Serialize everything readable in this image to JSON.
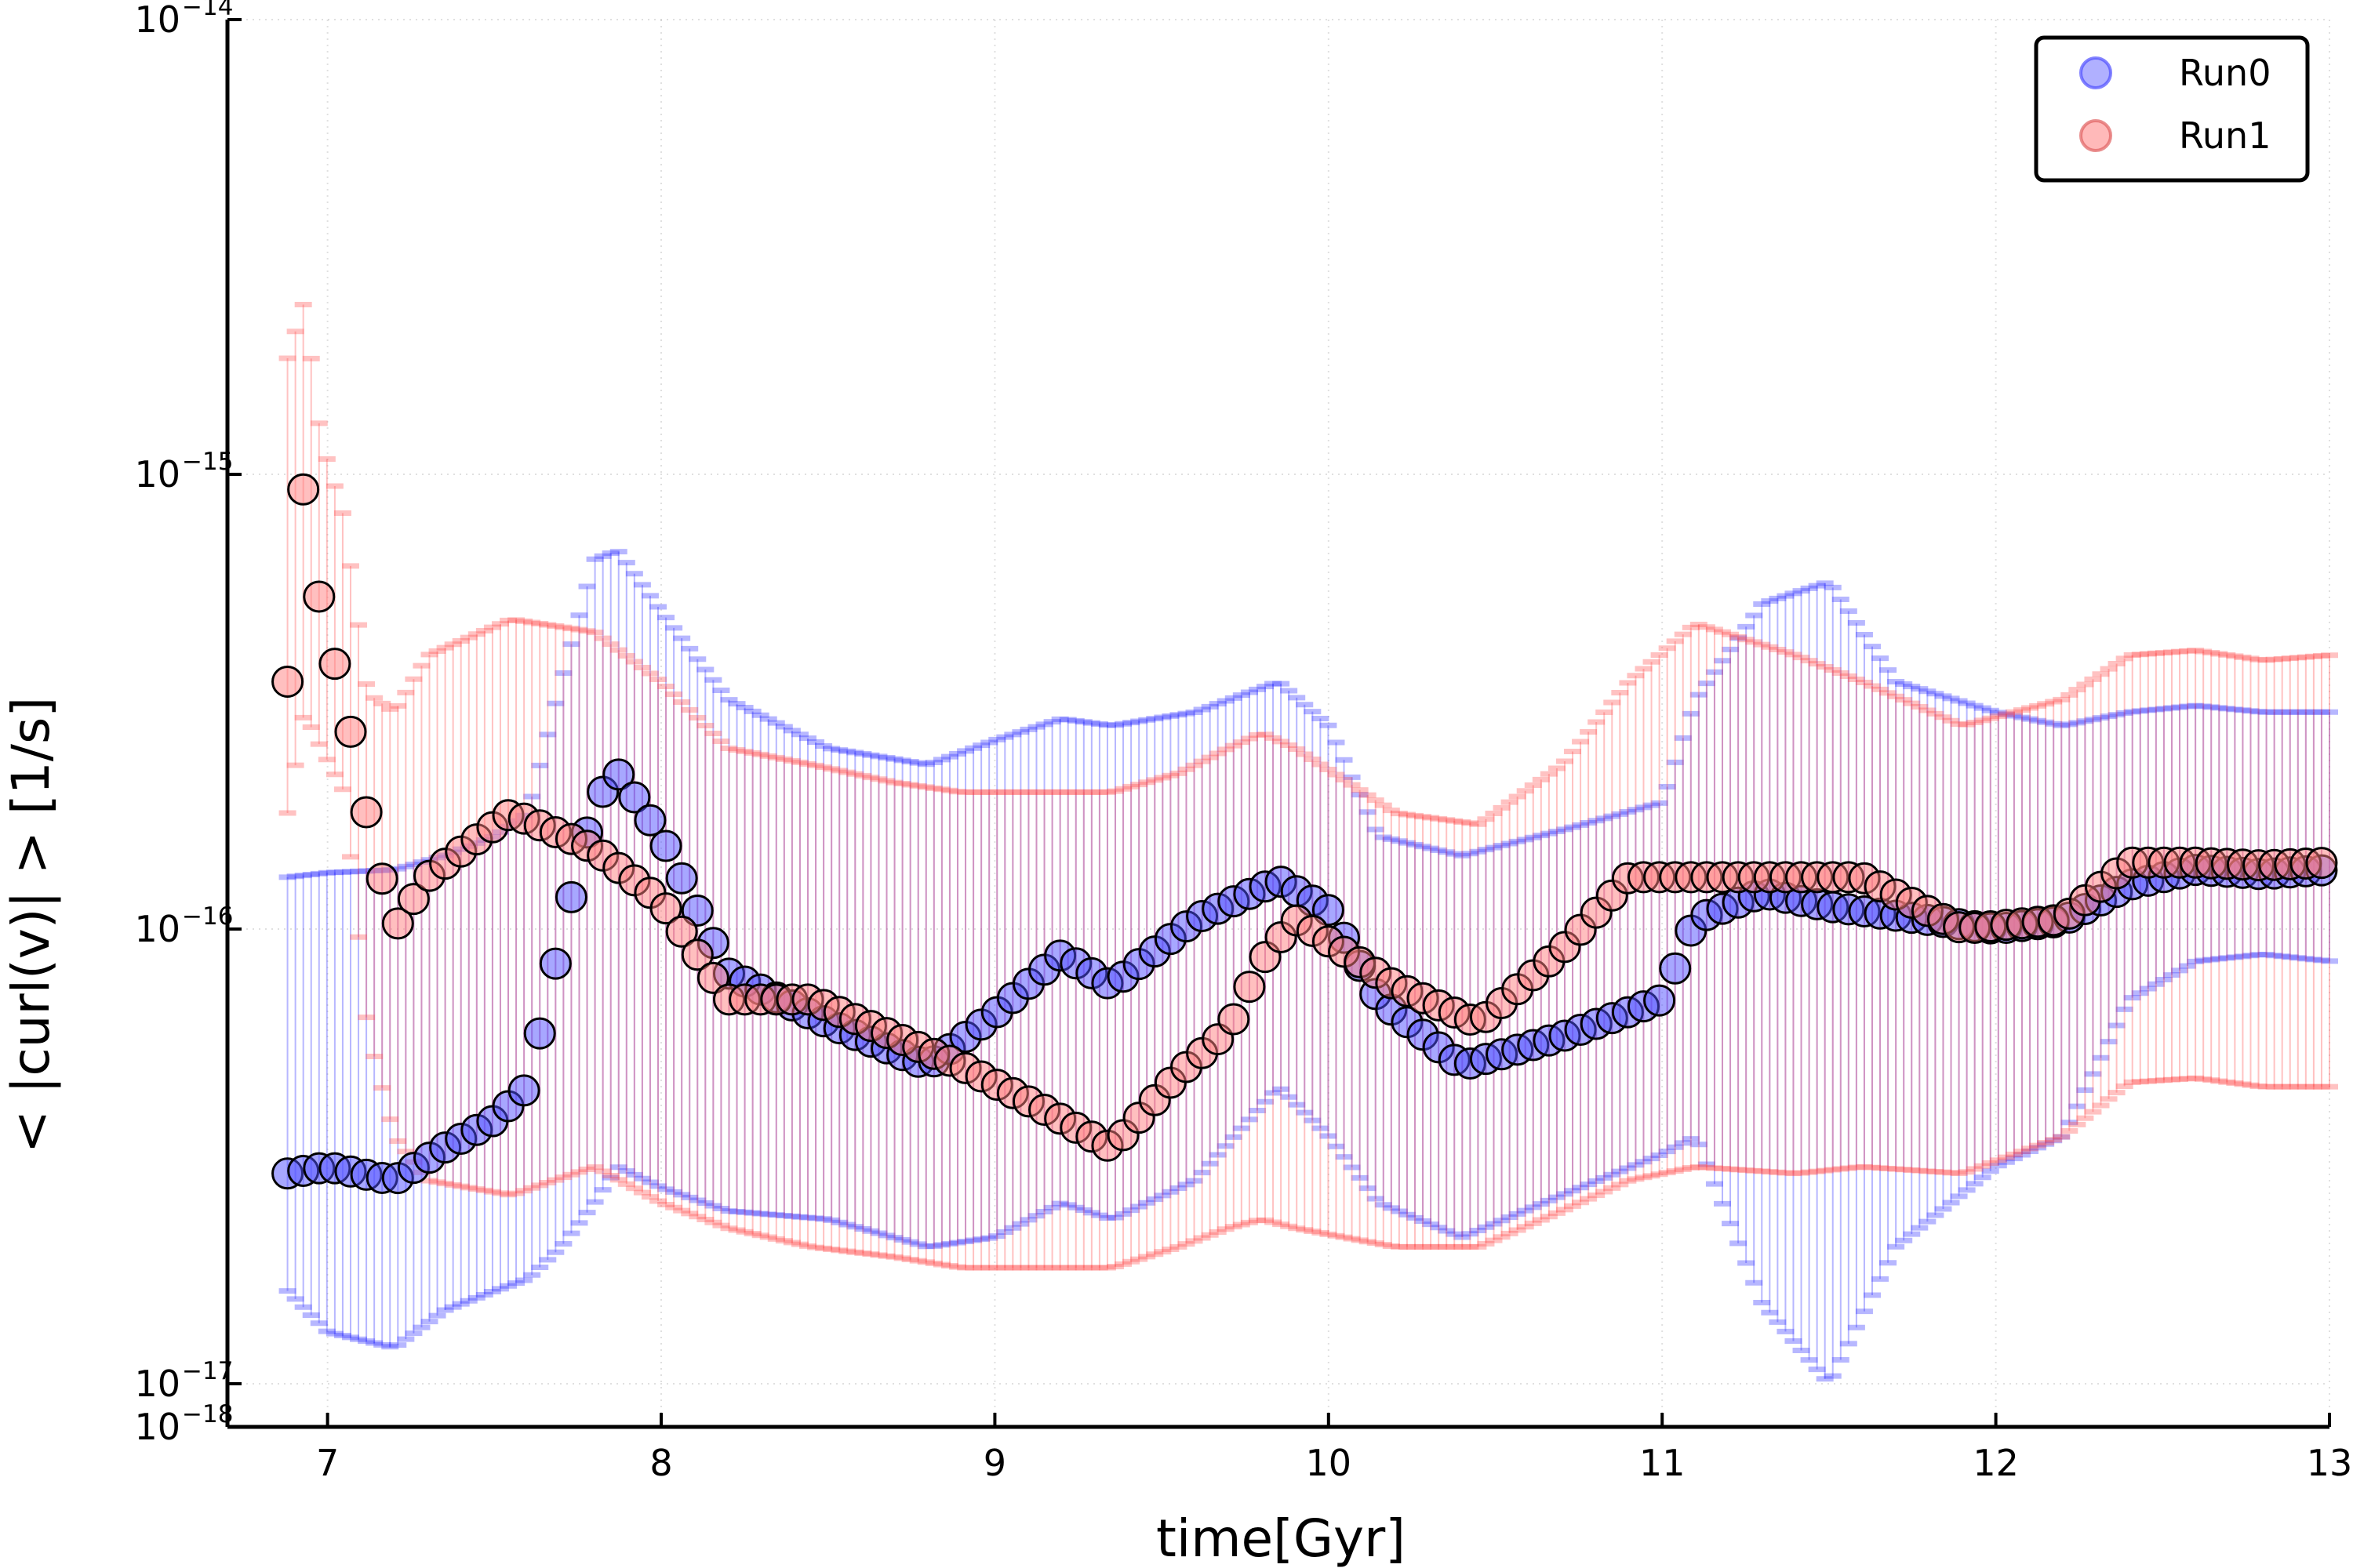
{
  "chart_data": {
    "type": "scatter",
    "title": "",
    "xlabel": "time[Gyr]",
    "ylabel": "< |curl(v)| > [1/s]",
    "xlim": [
      6.7,
      13.0
    ],
    "ylim": [
      1e-18,
      1e-14
    ],
    "y_scale": "log",
    "x_ticks": [
      7,
      8,
      9,
      10,
      11,
      12,
      13
    ],
    "y_ticks": [
      {
        "value": 1e-14,
        "base": "10",
        "exp": "−14"
      },
      {
        "value": 1e-15,
        "base": "10",
        "exp": "−15"
      },
      {
        "value": 1e-16,
        "base": "10",
        "exp": "−16"
      },
      {
        "value": 1e-17,
        "base": "10",
        "exp": "−17"
      },
      {
        "value": 1e-18,
        "base": "10",
        "exp": "−18"
      }
    ],
    "grid": true,
    "legend_position": "top-right",
    "error_bars": "min-max bars per point",
    "series": [
      {
        "name": "Run0",
        "color": "#4f4fff",
        "error_color": "#3030ff",
        "anchors": [
          {
            "t": 6.88,
            "y": 2.9e-17,
            "lo": 1.6e-17,
            "hi": 1.3e-16
          },
          {
            "t": 7.0,
            "y": 3e-17,
            "lo": 1.3e-17,
            "hi": 1.33e-16
          },
          {
            "t": 7.2,
            "y": 2.8e-17,
            "lo": 1.2e-17,
            "hi": 1.35e-16
          },
          {
            "t": 7.35,
            "y": 3.3e-17,
            "lo": 1.45e-17,
            "hi": 1.45e-16
          },
          {
            "t": 7.5,
            "y": 3.8e-17,
            "lo": 1.6e-17,
            "hi": 1.6e-16
          },
          {
            "t": 7.6,
            "y": 4.5e-17,
            "lo": 1.7e-17,
            "hi": 1.8e-16
          },
          {
            "t": 7.7,
            "y": 9.5e-17,
            "lo": 2e-17,
            "hi": 3.5e-16
          },
          {
            "t": 7.8,
            "y": 1.9e-16,
            "lo": 2.5e-17,
            "hi": 6.5e-16
          },
          {
            "t": 7.87,
            "y": 2.2e-16,
            "lo": 3e-17,
            "hi": 6.8e-16
          },
          {
            "t": 8.0,
            "y": 1.6e-16,
            "lo": 2.7e-17,
            "hi": 5e-16
          },
          {
            "t": 8.2,
            "y": 8e-17,
            "lo": 2.4e-17,
            "hi": 3.2e-16
          },
          {
            "t": 8.5,
            "y": 6.2e-17,
            "lo": 2.3e-17,
            "hi": 2.5e-16
          },
          {
            "t": 8.8,
            "y": 5e-17,
            "lo": 2e-17,
            "hi": 2.3e-16
          },
          {
            "t": 9.0,
            "y": 6.5e-17,
            "lo": 2.1e-17,
            "hi": 2.6e-16
          },
          {
            "t": 9.2,
            "y": 8.8e-17,
            "lo": 2.5e-17,
            "hi": 2.9e-16
          },
          {
            "t": 9.35,
            "y": 7.5e-17,
            "lo": 2.3e-17,
            "hi": 2.8e-16
          },
          {
            "t": 9.6,
            "y": 1.05e-16,
            "lo": 2.8e-17,
            "hi": 3e-16
          },
          {
            "t": 9.85,
            "y": 1.28e-16,
            "lo": 4.5e-17,
            "hi": 3.5e-16
          },
          {
            "t": 10.0,
            "y": 1.1e-16,
            "lo": 3.5e-17,
            "hi": 2.8e-16
          },
          {
            "t": 10.15,
            "y": 7e-17,
            "lo": 2.5e-17,
            "hi": 1.6e-16
          },
          {
            "t": 10.4,
            "y": 5e-17,
            "lo": 2.1e-17,
            "hi": 1.45e-16
          },
          {
            "t": 10.7,
            "y": 5.8e-17,
            "lo": 2.6e-17,
            "hi": 1.65e-16
          },
          {
            "t": 11.0,
            "y": 7e-17,
            "lo": 3.2e-17,
            "hi": 1.9e-16
          },
          {
            "t": 11.1,
            "y": 1.05e-16,
            "lo": 3.5e-17,
            "hi": 3.2e-16
          },
          {
            "t": 11.3,
            "y": 1.2e-16,
            "lo": 1.5e-17,
            "hi": 5.2e-16
          },
          {
            "t": 11.5,
            "y": 1.12e-16,
            "lo": 1e-17,
            "hi": 5.8e-16
          },
          {
            "t": 11.7,
            "y": 1.07e-16,
            "lo": 2e-17,
            "hi": 3.5e-16
          },
          {
            "t": 12.0,
            "y": 1e-16,
            "lo": 3e-17,
            "hi": 3e-16
          },
          {
            "t": 12.2,
            "y": 1.04e-16,
            "lo": 3.5e-17,
            "hi": 2.8e-16
          },
          {
            "t": 12.4,
            "y": 1.25e-16,
            "lo": 7e-17,
            "hi": 3e-16
          },
          {
            "t": 12.6,
            "y": 1.35e-16,
            "lo": 8.5e-17,
            "hi": 3.1e-16
          },
          {
            "t": 12.8,
            "y": 1.32e-16,
            "lo": 8.8e-17,
            "hi": 3e-16
          },
          {
            "t": 13.0,
            "y": 1.35e-16,
            "lo": 8.5e-17,
            "hi": 3e-16
          }
        ]
      },
      {
        "name": "Run1",
        "color": "#ff7f7f",
        "error_color": "#ff5050",
        "anchors": [
          {
            "t": 6.88,
            "y": 3.5e-16,
            "lo": 1.8e-16,
            "hi": 1.8e-15
          },
          {
            "t": 6.93,
            "y": 9.8e-16,
            "lo": 3e-16,
            "hi": 2.4e-15
          },
          {
            "t": 6.98,
            "y": 5e-16,
            "lo": 2.5e-16,
            "hi": 1.2e-15
          },
          {
            "t": 7.05,
            "y": 3.2e-16,
            "lo": 2e-16,
            "hi": 8e-16
          },
          {
            "t": 7.12,
            "y": 1.75e-16,
            "lo": 6e-17,
            "hi": 3.3e-16
          },
          {
            "t": 7.2,
            "y": 1e-16,
            "lo": 3.5e-17,
            "hi": 3e-16
          },
          {
            "t": 7.3,
            "y": 1.3e-16,
            "lo": 2.8e-17,
            "hi": 4e-16
          },
          {
            "t": 7.55,
            "y": 1.8e-16,
            "lo": 2.6e-17,
            "hi": 4.8e-16
          },
          {
            "t": 7.8,
            "y": 1.5e-16,
            "lo": 3e-17,
            "hi": 4.5e-16
          },
          {
            "t": 8.0,
            "y": 1.15e-16,
            "lo": 2.5e-17,
            "hi": 3.5e-16
          },
          {
            "t": 8.2,
            "y": 7e-17,
            "lo": 2.2e-17,
            "hi": 2.5e-16
          },
          {
            "t": 8.45,
            "y": 7e-17,
            "lo": 2e-17,
            "hi": 2.3e-16
          },
          {
            "t": 8.7,
            "y": 5.8e-17,
            "lo": 1.9e-17,
            "hi": 2.1e-16
          },
          {
            "t": 8.9,
            "y": 5e-17,
            "lo": 1.8e-17,
            "hi": 2e-16
          },
          {
            "t": 9.15,
            "y": 4e-17,
            "lo": 1.8e-17,
            "hi": 2e-16
          },
          {
            "t": 9.35,
            "y": 3.3e-17,
            "lo": 1.8e-17,
            "hi": 2e-16
          },
          {
            "t": 9.55,
            "y": 4.8e-17,
            "lo": 2e-17,
            "hi": 2.2e-16
          },
          {
            "t": 9.7,
            "y": 6e-17,
            "lo": 2.2e-17,
            "hi": 2.5e-16
          },
          {
            "t": 9.8,
            "y": 8.5e-17,
            "lo": 2.3e-17,
            "hi": 2.7e-16
          },
          {
            "t": 9.9,
            "y": 1.05e-16,
            "lo": 2.2e-17,
            "hi": 2.5e-16
          },
          {
            "t": 10.2,
            "y": 7.5e-17,
            "lo": 2e-17,
            "hi": 1.8e-16
          },
          {
            "t": 10.45,
            "y": 6.2e-17,
            "lo": 2e-17,
            "hi": 1.7e-16
          },
          {
            "t": 10.7,
            "y": 9e-17,
            "lo": 2.4e-17,
            "hi": 2.3e-16
          },
          {
            "t": 10.9,
            "y": 1.3e-16,
            "lo": 2.8e-17,
            "hi": 3.5e-16
          },
          {
            "t": 11.1,
            "y": 1.3e-16,
            "lo": 3e-17,
            "hi": 4.7e-16
          },
          {
            "t": 11.4,
            "y": 1.3e-16,
            "lo": 2.9e-17,
            "hi": 4e-16
          },
          {
            "t": 11.6,
            "y": 1.3e-16,
            "lo": 3e-17,
            "hi": 3.5e-16
          },
          {
            "t": 11.9,
            "y": 1e-16,
            "lo": 2.9e-17,
            "hi": 2.8e-16
          },
          {
            "t": 12.2,
            "y": 1.05e-16,
            "lo": 3.5e-17,
            "hi": 3.2e-16
          },
          {
            "t": 12.4,
            "y": 1.4e-16,
            "lo": 4.6e-17,
            "hi": 4e-16
          },
          {
            "t": 12.6,
            "y": 1.4e-16,
            "lo": 4.7e-17,
            "hi": 4.1e-16
          },
          {
            "t": 12.8,
            "y": 1.38e-16,
            "lo": 4.5e-17,
            "hi": 3.9e-16
          },
          {
            "t": 13.0,
            "y": 1.4e-16,
            "lo": 4.5e-17,
            "hi": 4e-16
          }
        ]
      }
    ]
  }
}
